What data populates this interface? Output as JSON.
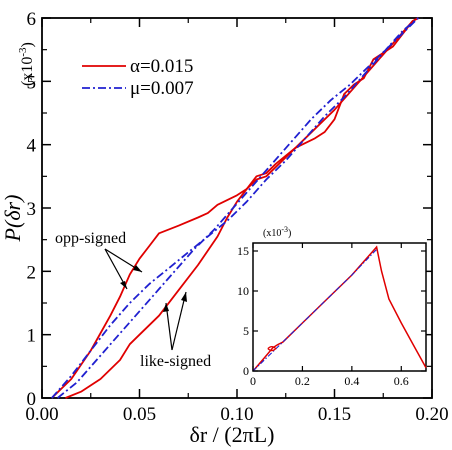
{
  "chart_data": {
    "type": "line",
    "xlabel": "δr / (2πL)",
    "ylabel": "P(δr)",
    "y_multiplier": "(x10",
    "y_multiplier_exp": "-3",
    "xlim": [
      0.0,
      0.2
    ],
    "ylim": [
      0,
      6
    ],
    "xticks": [
      "0.00",
      "0.05",
      "0.10",
      "0.15",
      "0.20"
    ],
    "yticks": [
      "0",
      "1",
      "2",
      "3",
      "4",
      "5",
      "6"
    ],
    "legend": "top-left",
    "series": [
      {
        "name": "α=0.015",
        "color": "#e00000",
        "dash": "solid",
        "branches": [
          {
            "x": [
              0.005,
              0.015,
              0.025,
              0.035,
              0.04,
              0.045,
              0.05,
              0.055,
              0.06,
              0.07,
              0.08,
              0.085,
              0.09,
              0.1,
              0.105,
              0.11,
              0.115,
              0.12,
              0.13,
              0.14,
              0.15,
              0.16,
              0.17,
              0.18,
              0.19,
              0.193
            ],
            "y": [
              0.0,
              0.3,
              0.75,
              1.3,
              1.6,
              1.95,
              2.2,
              2.4,
              2.6,
              2.72,
              2.85,
              2.92,
              3.05,
              3.2,
              3.3,
              3.45,
              3.5,
              3.65,
              3.95,
              4.25,
              4.55,
              4.9,
              5.25,
              5.6,
              5.95,
              6.0
            ]
          },
          {
            "x": [
              0.012,
              0.02,
              0.03,
              0.04,
              0.045,
              0.05,
              0.06,
              0.07,
              0.08,
              0.09,
              0.095,
              0.1,
              0.11,
              0.115,
              0.12,
              0.13,
              0.14,
              0.145,
              0.15,
              0.155,
              0.16,
              0.165,
              0.17,
              0.18,
              0.19,
              0.193
            ],
            "y": [
              0.0,
              0.1,
              0.3,
              0.6,
              0.85,
              1.0,
              1.3,
              1.7,
              2.1,
              2.55,
              2.85,
              3.1,
              3.5,
              3.55,
              3.7,
              3.95,
              4.1,
              4.2,
              4.4,
              4.8,
              4.95,
              5.05,
              5.35,
              5.55,
              5.95,
              6.0
            ]
          }
        ]
      },
      {
        "name": "μ=0.007",
        "color": "#2020d0",
        "dash": "dashdot",
        "branches": [
          {
            "x": [
              0.005,
              0.015,
              0.025,
              0.035,
              0.045,
              0.055,
              0.065,
              0.075,
              0.085,
              0.095,
              0.105,
              0.115,
              0.125,
              0.135,
              0.145,
              0.155,
              0.165,
              0.175,
              0.185,
              0.193
            ],
            "y": [
              0.0,
              0.35,
              0.75,
              1.15,
              1.5,
              1.8,
              2.05,
              2.3,
              2.55,
              2.8,
              3.1,
              3.45,
              3.75,
              4.1,
              4.45,
              4.75,
              5.1,
              5.45,
              5.8,
              6.0
            ]
          },
          {
            "x": [
              0.008,
              0.018,
              0.028,
              0.038,
              0.048,
              0.058,
              0.068,
              0.078,
              0.088,
              0.098,
              0.108,
              0.118,
              0.128,
              0.138,
              0.148,
              0.158,
              0.168,
              0.178,
              0.188,
              0.193
            ],
            "y": [
              0.0,
              0.25,
              0.6,
              0.95,
              1.3,
              1.65,
              2.0,
              2.35,
              2.65,
              3.0,
              3.35,
              3.7,
              4.05,
              4.4,
              4.7,
              4.95,
              5.25,
              5.55,
              5.85,
              6.0
            ]
          }
        ]
      }
    ],
    "annotations": [
      {
        "text": "opp-signed"
      },
      {
        "text": "like-signed"
      }
    ],
    "inset": {
      "y_multiplier": "(x10",
      "y_multiplier_exp": "-3",
      "xlim": [
        0.0,
        0.7
      ],
      "ylim": [
        0,
        16
      ],
      "xticks": [
        "0",
        "0.2",
        "0.4",
        "0.6"
      ],
      "yticks": [
        "0",
        "5",
        "10",
        "15"
      ],
      "series": [
        {
          "name": "α=0.015",
          "x": [
            0.0,
            0.02,
            0.05,
            0.08,
            0.1,
            0.12,
            0.2,
            0.3,
            0.4,
            0.5,
            0.52,
            0.55,
            0.6,
            0.65,
            0.7
          ],
          "y": [
            0.0,
            0.7,
            1.8,
            2.9,
            3.3,
            3.6,
            6.0,
            9.0,
            12.0,
            15.5,
            12.5,
            9.0,
            6.0,
            3.2,
            0.4
          ]
        },
        {
          "name": "μ=0.007",
          "x": [
            0.0,
            0.1,
            0.2,
            0.3,
            0.4,
            0.5
          ],
          "y": [
            0.0,
            3.0,
            6.0,
            9.0,
            12.0,
            15.2
          ]
        }
      ]
    }
  }
}
